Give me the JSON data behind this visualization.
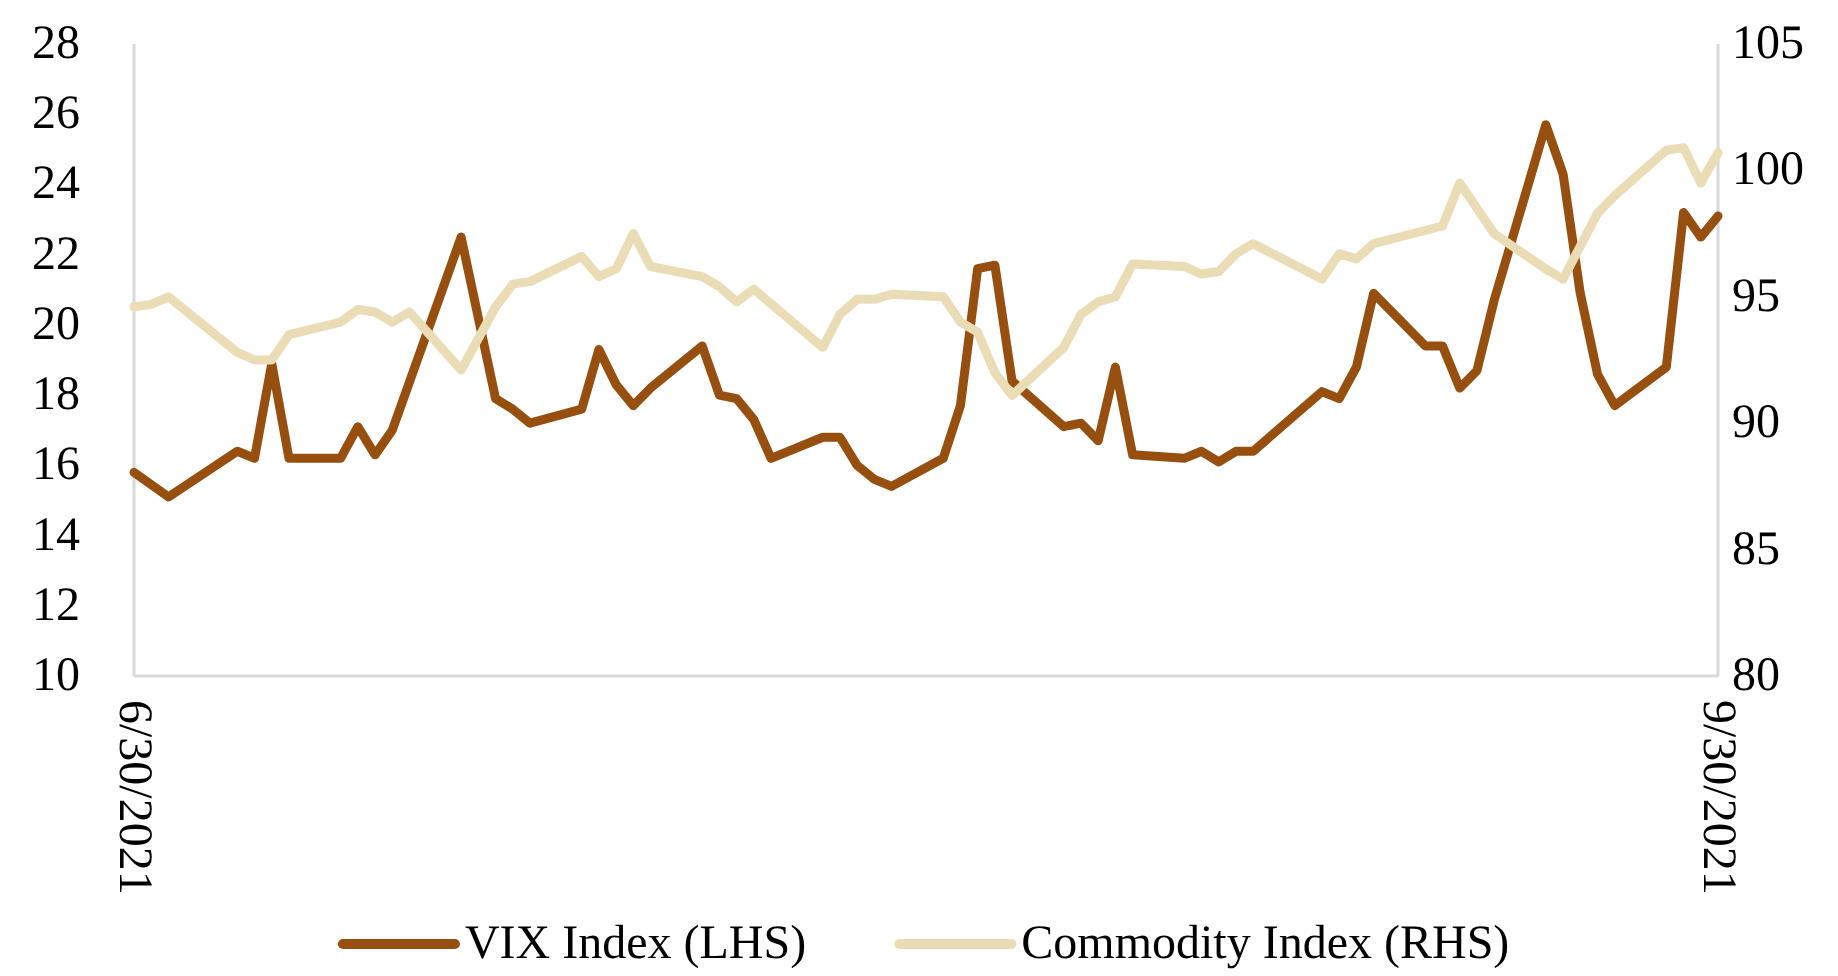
{
  "chart_data": {
    "type": "line",
    "legend": "bottom",
    "xlim": [
      "2021-06-30",
      "2021-09-30"
    ],
    "xticks": [
      {
        "value": "2021-06-30",
        "label": "6/30/2021"
      },
      {
        "value": "2021-09-30",
        "label": "9/30/2021"
      }
    ],
    "ylim": [
      10,
      28
    ],
    "yticks": [
      10,
      12,
      14,
      16,
      18,
      20,
      22,
      24,
      26,
      28
    ],
    "y2lim": [
      80,
      105
    ],
    "y2ticks": [
      80,
      85,
      90,
      95,
      100,
      105
    ],
    "series": [
      {
        "name": "VIX Index (LHS)",
        "color": "#974f10",
        "x": [
          "2021-06-30",
          "2021-07-02",
          "2021-07-06",
          "2021-07-07",
          "2021-07-08",
          "2021-07-09",
          "2021-07-12",
          "2021-07-13",
          "2021-07-14",
          "2021-07-15",
          "2021-07-19",
          "2021-07-21",
          "2021-07-22",
          "2021-07-23",
          "2021-07-26",
          "2021-07-27",
          "2021-07-28",
          "2021-07-29",
          "2021-07-30",
          "2021-08-02",
          "2021-08-03",
          "2021-08-04",
          "2021-08-05",
          "2021-08-06",
          "2021-08-09",
          "2021-08-10",
          "2021-08-11",
          "2021-08-12",
          "2021-08-13",
          "2021-08-16",
          "2021-08-17",
          "2021-08-18",
          "2021-08-19",
          "2021-08-20",
          "2021-08-23",
          "2021-08-24",
          "2021-08-25",
          "2021-08-26",
          "2021-08-27",
          "2021-08-30",
          "2021-08-31",
          "2021-09-01",
          "2021-09-02",
          "2021-09-03",
          "2021-09-07",
          "2021-09-08",
          "2021-09-09",
          "2021-09-10",
          "2021-09-13",
          "2021-09-14",
          "2021-09-15",
          "2021-09-16",
          "2021-09-17",
          "2021-09-20",
          "2021-09-21",
          "2021-09-22",
          "2021-09-23",
          "2021-09-24",
          "2021-09-27",
          "2021-09-28",
          "2021-09-29",
          "2021-09-30"
        ],
        "values": [
          15.8,
          15.1,
          16.4,
          16.2,
          18.9,
          16.2,
          16.2,
          17.1,
          16.3,
          17.0,
          22.5,
          17.9,
          17.6,
          17.2,
          17.6,
          19.3,
          18.3,
          17.7,
          18.2,
          19.4,
          18.0,
          17.9,
          17.3,
          16.2,
          16.8,
          16.8,
          16.0,
          15.6,
          15.4,
          16.2,
          17.7,
          21.6,
          21.7,
          18.4,
          17.1,
          17.2,
          16.7,
          18.8,
          16.3,
          16.2,
          16.4,
          16.1,
          16.4,
          16.4,
          18.1,
          17.9,
          18.8,
          20.9,
          19.4,
          19.4,
          18.2,
          18.7,
          20.7,
          25.7,
          24.3,
          20.9,
          18.6,
          17.7,
          18.8,
          23.2,
          22.5,
          23.1
        ]
      },
      {
        "name": "Commodity Index (RHS)",
        "color": "#eadcb5",
        "axis": "y2",
        "x": [
          "2021-06-30",
          "2021-07-01",
          "2021-07-02",
          "2021-07-06",
          "2021-07-07",
          "2021-07-08",
          "2021-07-09",
          "2021-07-12",
          "2021-07-13",
          "2021-07-14",
          "2021-07-15",
          "2021-07-16",
          "2021-07-19",
          "2021-07-21",
          "2021-07-22",
          "2021-07-23",
          "2021-07-26",
          "2021-07-27",
          "2021-07-28",
          "2021-07-29",
          "2021-07-30",
          "2021-08-02",
          "2021-08-03",
          "2021-08-04",
          "2021-08-05",
          "2021-08-09",
          "2021-08-10",
          "2021-08-11",
          "2021-08-12",
          "2021-08-13",
          "2021-08-16",
          "2021-08-17",
          "2021-08-18",
          "2021-08-19",
          "2021-08-20",
          "2021-08-23",
          "2021-08-24",
          "2021-08-25",
          "2021-08-26",
          "2021-08-27",
          "2021-08-30",
          "2021-08-31",
          "2021-09-01",
          "2021-09-02",
          "2021-09-03",
          "2021-09-07",
          "2021-09-08",
          "2021-09-09",
          "2021-09-10",
          "2021-09-14",
          "2021-09-15",
          "2021-09-17",
          "2021-09-20",
          "2021-09-21",
          "2021-09-22",
          "2021-09-23",
          "2021-09-24",
          "2021-09-27",
          "2021-09-28",
          "2021-09-29",
          "2021-09-30"
        ],
        "values": [
          94.6,
          94.7,
          95.0,
          92.8,
          92.5,
          92.5,
          93.5,
          94.0,
          94.5,
          94.4,
          94.0,
          94.4,
          92.1,
          94.6,
          95.5,
          95.6,
          96.6,
          95.8,
          96.1,
          97.5,
          96.2,
          95.8,
          95.4,
          94.8,
          95.3,
          93.0,
          94.3,
          94.9,
          94.9,
          95.1,
          95.0,
          94.0,
          93.6,
          92.0,
          91.1,
          93.0,
          94.3,
          94.8,
          95.0,
          96.3,
          96.2,
          95.9,
          96.0,
          96.7,
          97.1,
          95.7,
          96.7,
          96.5,
          97.1,
          97.8,
          99.5,
          97.5,
          96.1,
          95.7,
          97.0,
          98.3,
          99.0,
          100.8,
          100.9,
          99.5,
          100.7
        ]
      }
    ]
  }
}
